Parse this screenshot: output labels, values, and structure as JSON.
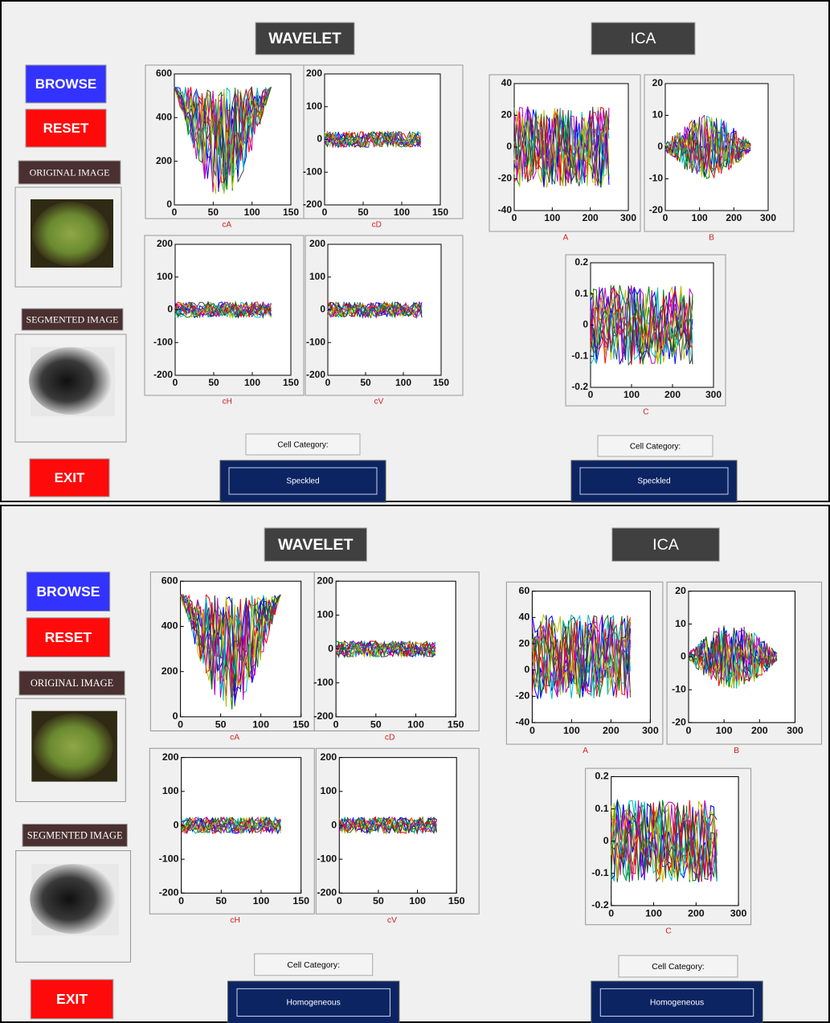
{
  "panels": [
    {
      "wavelet_title": "WAVELET",
      "ica_title": "ICA",
      "browse": "BROWSE",
      "reset": "RESET",
      "exit": "EXIT",
      "original_image": "ORIGINAL IMAGE",
      "segmented_image": "SEGMENTED IMAGE",
      "wavelet_category_label": "Cell Category:",
      "wavelet_category": "Speckled",
      "ica_category_label": "Cell Category:",
      "ica_category": "Speckled",
      "plots": [
        {
          "label": "cA",
          "xlim": [
            0,
            150
          ],
          "xticks": [
            0,
            50,
            100,
            150
          ],
          "ylim": [
            0,
            600
          ],
          "yticks": [
            0,
            200,
            400,
            600
          ]
        },
        {
          "label": "cD",
          "xlim": [
            0,
            150
          ],
          "xticks": [
            0,
            50,
            100,
            150
          ],
          "ylim": [
            -200,
            200
          ],
          "yticks": [
            -200,
            -100,
            0,
            100,
            200
          ]
        },
        {
          "label": "cH",
          "xlim": [
            0,
            150
          ],
          "xticks": [
            0,
            50,
            100,
            150
          ],
          "ylim": [
            -200,
            200
          ],
          "yticks": [
            -200,
            -100,
            0,
            100,
            200
          ]
        },
        {
          "label": "cV",
          "xlim": [
            0,
            150
          ],
          "xticks": [
            0,
            50,
            100,
            150
          ],
          "ylim": [
            -200,
            200
          ],
          "yticks": [
            -200,
            -100,
            0,
            100,
            200
          ]
        },
        {
          "label": "A",
          "xlim": [
            0,
            300
          ],
          "xticks": [
            0,
            100,
            200,
            300
          ],
          "ylim": [
            -40,
            40
          ],
          "yticks": [
            -40,
            -20,
            0,
            20,
            40
          ]
        },
        {
          "label": "B",
          "xlim": [
            0,
            300
          ],
          "xticks": [
            0,
            100,
            200,
            300
          ],
          "ylim": [
            -20,
            20
          ],
          "yticks": [
            -20,
            -10,
            0,
            10,
            20
          ]
        },
        {
          "label": "C",
          "xlim": [
            0,
            300
          ],
          "xticks": [
            0,
            100,
            200,
            300
          ],
          "ylim": [
            -0.2,
            0.2
          ],
          "yticks": [
            -0.2,
            -0.1,
            0,
            0.1,
            0.2
          ]
        }
      ]
    },
    {
      "wavelet_title": "WAVELET",
      "ica_title": "ICA",
      "browse": "BROWSE",
      "reset": "RESET",
      "exit": "EXIT",
      "original_image": "ORIGINAL IMAGE",
      "segmented_image": "SEGMENTED IMAGE",
      "wavelet_category_label": "Cell Category:",
      "wavelet_category": "Homogeneous",
      "ica_category_label": "Cell Category:",
      "ica_category": "Homogeneous",
      "plots": [
        {
          "label": "cA",
          "xlim": [
            0,
            150
          ],
          "xticks": [
            0,
            50,
            100,
            150
          ],
          "ylim": [
            0,
            600
          ],
          "yticks": [
            0,
            200,
            400,
            600
          ]
        },
        {
          "label": "cD",
          "xlim": [
            0,
            150
          ],
          "xticks": [
            0,
            50,
            100,
            150
          ],
          "ylim": [
            -200,
            200
          ],
          "yticks": [
            -200,
            -100,
            0,
            100,
            200
          ]
        },
        {
          "label": "cH",
          "xlim": [
            0,
            150
          ],
          "xticks": [
            0,
            50,
            100,
            150
          ],
          "ylim": [
            -200,
            200
          ],
          "yticks": [
            -200,
            -100,
            0,
            100,
            200
          ]
        },
        {
          "label": "cV",
          "xlim": [
            0,
            150
          ],
          "xticks": [
            0,
            50,
            100,
            150
          ],
          "ylim": [
            -200,
            200
          ],
          "yticks": [
            -200,
            -100,
            0,
            100,
            200
          ]
        },
        {
          "label": "A",
          "xlim": [
            0,
            300
          ],
          "xticks": [
            0,
            100,
            200,
            300
          ],
          "ylim": [
            -40,
            60
          ],
          "yticks": [
            -40,
            -20,
            0,
            20,
            40,
            60
          ]
        },
        {
          "label": "B",
          "xlim": [
            0,
            300
          ],
          "xticks": [
            0,
            100,
            200,
            300
          ],
          "ylim": [
            -20,
            20
          ],
          "yticks": [
            -20,
            -10,
            0,
            10,
            20
          ]
        },
        {
          "label": "C",
          "xlim": [
            0,
            300
          ],
          "xticks": [
            0,
            100,
            200,
            300
          ],
          "ylim": [
            -0.2,
            0.2
          ],
          "yticks": [
            -0.2,
            -0.1,
            0,
            0.1,
            0.2
          ]
        }
      ]
    }
  ]
}
